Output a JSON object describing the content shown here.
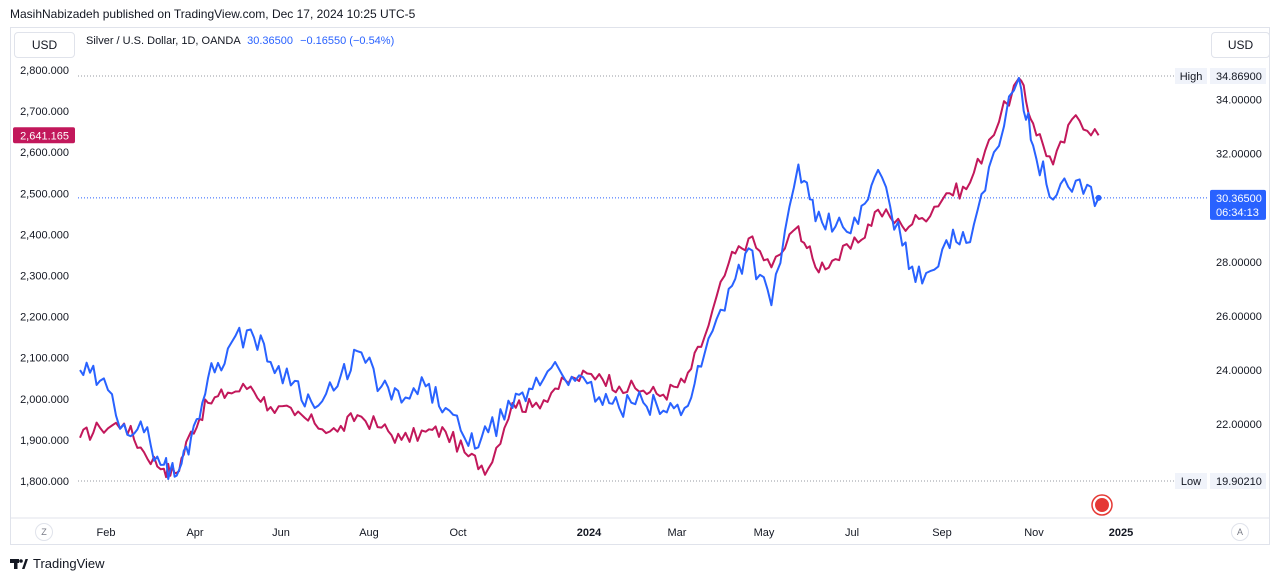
{
  "header": {
    "publisher_line": "MasihNabizadeh published on TradingView.com, Dec 17, 2024 10:25 UTC-5"
  },
  "left_currency": "USD",
  "right_currency": "USD",
  "legend": {
    "symbol": "Silver / U.S. Dollar, 1D, OANDA",
    "price": "30.36500",
    "change": "−0.16550 (−0.54%)"
  },
  "left_axis": {
    "ticks": [
      "2,800.000",
      "2,700.000",
      "2,600.000",
      "2,500.000",
      "2,400.000",
      "2,300.000",
      "2,200.000",
      "2,100.000",
      "2,000.000",
      "1,900.000",
      "1,800.000"
    ],
    "current_label": "2,641.165"
  },
  "right_axis": {
    "ticks": [
      "34.00000",
      "32.00000",
      "30.00000",
      "28.00000",
      "26.00000",
      "24.00000",
      "22.00000",
      "20.00000"
    ],
    "high_label": "High",
    "high_value": "34.86900",
    "low_label": "Low",
    "low_value": "19.90210",
    "current_price": "30.36500",
    "countdown": "06:34:13"
  },
  "x_axis": {
    "labels": [
      "Feb",
      "Apr",
      "Jun",
      "Aug",
      "Oct",
      "2024",
      "Mar",
      "May",
      "Jul",
      "Sep",
      "Nov",
      "2025"
    ],
    "bold": [
      "2024",
      "2025"
    ]
  },
  "buttons": {
    "left_round": "Z",
    "right_round": "A"
  },
  "footer": {
    "brand": "TradingView"
  },
  "colors": {
    "silver": "#2962ff",
    "gold": "#c2185b",
    "grid_dots": "#9598a1",
    "frame": "#e0e3eb"
  },
  "chart_data": {
    "type": "line",
    "x_ticks": [
      "Feb",
      "Apr",
      "Jun",
      "Aug",
      "Oct",
      "2024",
      "Mar",
      "May",
      "Jul",
      "Sep",
      "Nov",
      "2025"
    ],
    "series": [
      {
        "name": "Silver / U.S. Dollar, 1D, OANDA",
        "axis": "right",
        "color": "#2962ff",
        "x": [
          "2023-01",
          "2023-01-15",
          "2023-02",
          "2023-02-15",
          "2023-03",
          "2023-03-10",
          "2023-03-20",
          "2023-04",
          "2023-04-15",
          "2023-05",
          "2023-05-15",
          "2023-06",
          "2023-06-15",
          "2023-07",
          "2023-07-15",
          "2023-08",
          "2023-08-15",
          "2023-09",
          "2023-09-15",
          "2023-10",
          "2023-10-15",
          "2023-11",
          "2023-11-15",
          "2023-12",
          "2023-12-15",
          "2024-01",
          "2024-01-15",
          "2024-02",
          "2024-02-15",
          "2024-03",
          "2024-03-15",
          "2024-04",
          "2024-04-15",
          "2024-05",
          "2024-05-20",
          "2024-06",
          "2024-06-15",
          "2024-07",
          "2024-07-15",
          "2024-08",
          "2024-08-15",
          "2024-09",
          "2024-09-15",
          "2024-10",
          "2024-10-22",
          "2024-11",
          "2024-11-15",
          "2024-12",
          "2024-12-17"
        ],
        "y": [
          24.0,
          23.6,
          22.0,
          21.7,
          20.5,
          20.1,
          21.5,
          23.7,
          24.8,
          25.5,
          24.3,
          23.6,
          22.6,
          23.4,
          24.7,
          23.4,
          22.8,
          23.4,
          22.6,
          21.2,
          21.7,
          22.6,
          23.3,
          24.3,
          23.6,
          23.0,
          22.6,
          22.8,
          22.5,
          22.6,
          24.6,
          27.0,
          28.5,
          26.4,
          31.6,
          29.5,
          29.3,
          29.4,
          31.4,
          28.6,
          27.2,
          28.8,
          28.7,
          31.5,
          34.8,
          32.3,
          30.3,
          31.0,
          30.365
        ]
      },
      {
        "name": "",
        "axis": "left",
        "color": "#c2185b",
        "x": [
          "2023-01",
          "2023-01-15",
          "2023-02",
          "2023-02-15",
          "2023-03",
          "2023-03-10",
          "2023-03-20",
          "2023-04",
          "2023-04-15",
          "2023-05",
          "2023-05-15",
          "2023-06",
          "2023-06-15",
          "2023-07",
          "2023-07-15",
          "2023-08",
          "2023-08-15",
          "2023-09",
          "2023-09-15",
          "2023-10",
          "2023-10-15",
          "2023-11",
          "2023-11-15",
          "2023-12",
          "2023-12-15",
          "2024-01",
          "2024-01-15",
          "2024-02",
          "2024-02-15",
          "2024-03",
          "2024-03-15",
          "2024-04",
          "2024-04-15",
          "2024-05",
          "2024-05-20",
          "2024-06",
          "2024-06-15",
          "2024-07",
          "2024-07-15",
          "2024-08",
          "2024-08-15",
          "2024-09",
          "2024-09-15",
          "2024-10",
          "2024-10-22",
          "2024-11",
          "2024-11-15",
          "2024-12",
          "2024-12-17"
        ],
        "y": [
          1905,
          1930,
          1940,
          1870,
          1830,
          1820,
          1920,
          1990,
          2015,
          2030,
          1980,
          1960,
          1940,
          1920,
          1960,
          1930,
          1900,
          1920,
          1920,
          1860,
          1830,
          1990,
          1980,
          2025,
          2050,
          2060,
          2030,
          2020,
          2010,
          2040,
          2150,
          2330,
          2390,
          2320,
          2420,
          2320,
          2340,
          2380,
          2460,
          2420,
          2440,
          2500,
          2510,
          2630,
          2780,
          2670,
          2570,
          2690,
          2641.165
        ]
      }
    ],
    "left_ylim": [
      1800,
      2800
    ],
    "right_ylim": [
      19.9021,
      34.869
    ],
    "legend": "top-left",
    "grid": false
  }
}
